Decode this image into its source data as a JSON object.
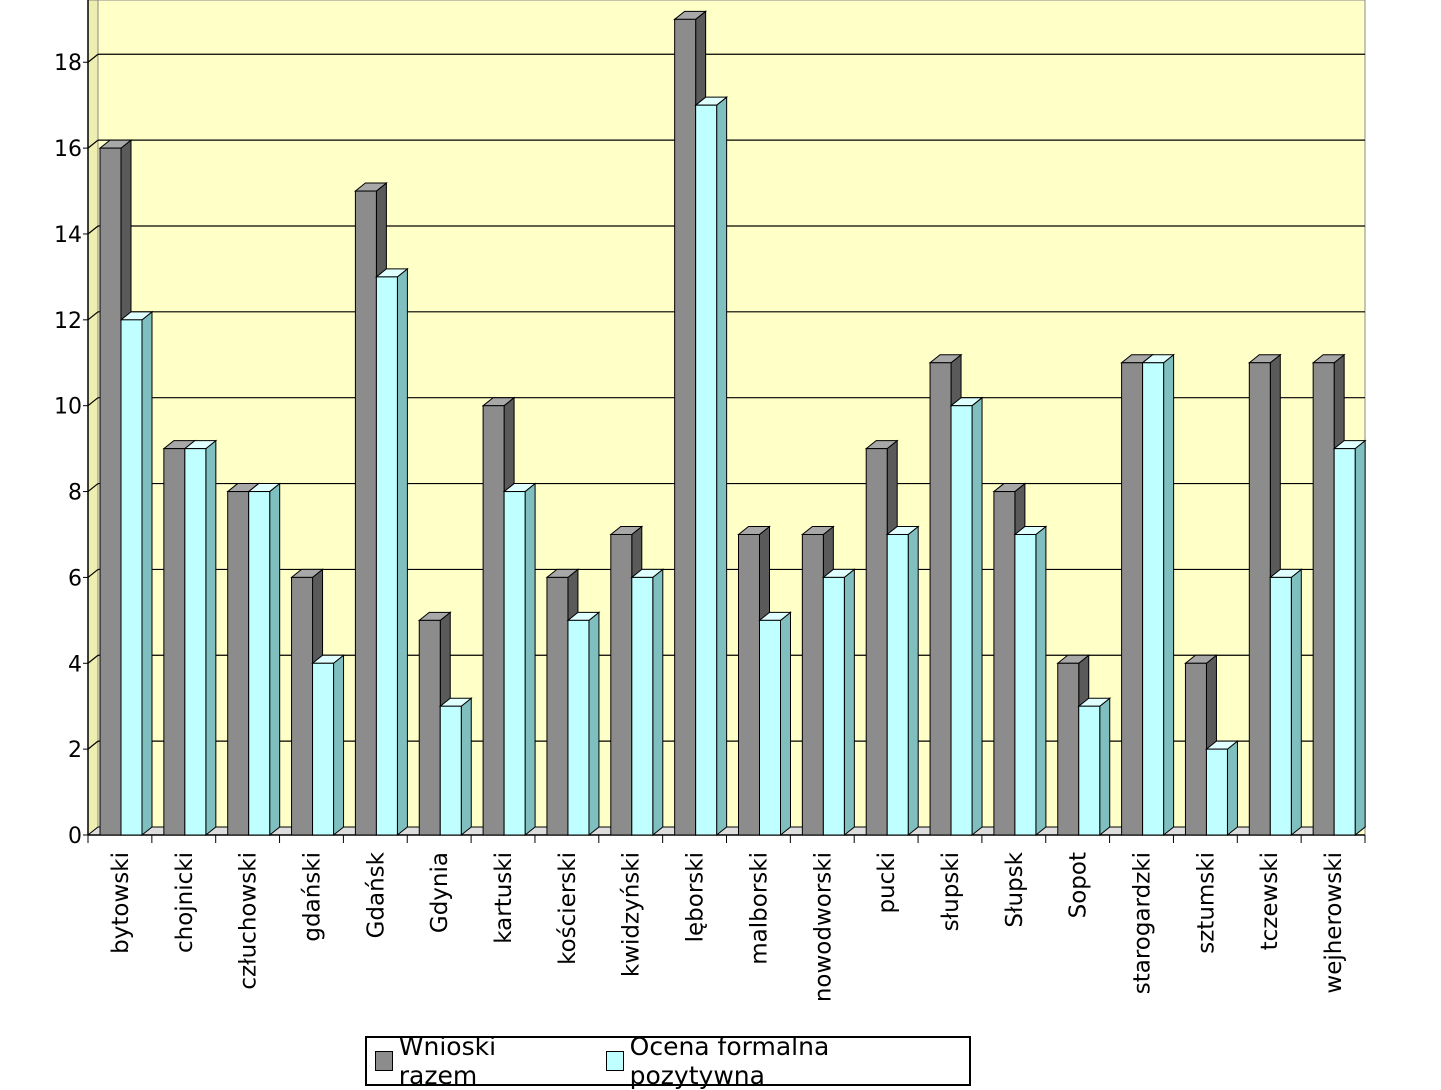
{
  "chart_data": {
    "type": "bar",
    "title": "",
    "xlabel": "",
    "ylabel": "",
    "ylim": [
      0,
      19.45
    ],
    "yticks": [
      "0",
      "2",
      "4",
      "6",
      "8",
      "10",
      "12",
      "14",
      "16",
      "18"
    ],
    "grid": true,
    "legend_position": "bottom",
    "categories": [
      "bytowski",
      "chojnicki",
      "człuchowski",
      "gdański",
      "Gdańsk",
      "Gdynia",
      "kartuski",
      "kościerski",
      "kwidzyński",
      "lęborski",
      "malborski",
      "nowodworski",
      "pucki",
      "słupski",
      "Słupsk",
      "Sopot",
      "starogardzki",
      "sztumski",
      "tczewski",
      "wejherowski"
    ],
    "series": [
      {
        "name": "Wnioski razem",
        "color": "#8c8c8c",
        "values": [
          16,
          9,
          8,
          6,
          15,
          5,
          10,
          6,
          7,
          19,
          7,
          7,
          9,
          11,
          8,
          4,
          11,
          4,
          11,
          11
        ]
      },
      {
        "name": "Ocena formalna pozytywna",
        "color": "#c0ffff",
        "values": [
          12,
          9,
          8,
          4,
          13,
          3,
          8,
          5,
          6,
          17,
          5,
          6,
          7,
          10,
          7,
          3,
          11,
          2,
          6,
          9
        ]
      }
    ],
    "colors": {
      "plot_bg": "#ffffc8"
    }
  }
}
